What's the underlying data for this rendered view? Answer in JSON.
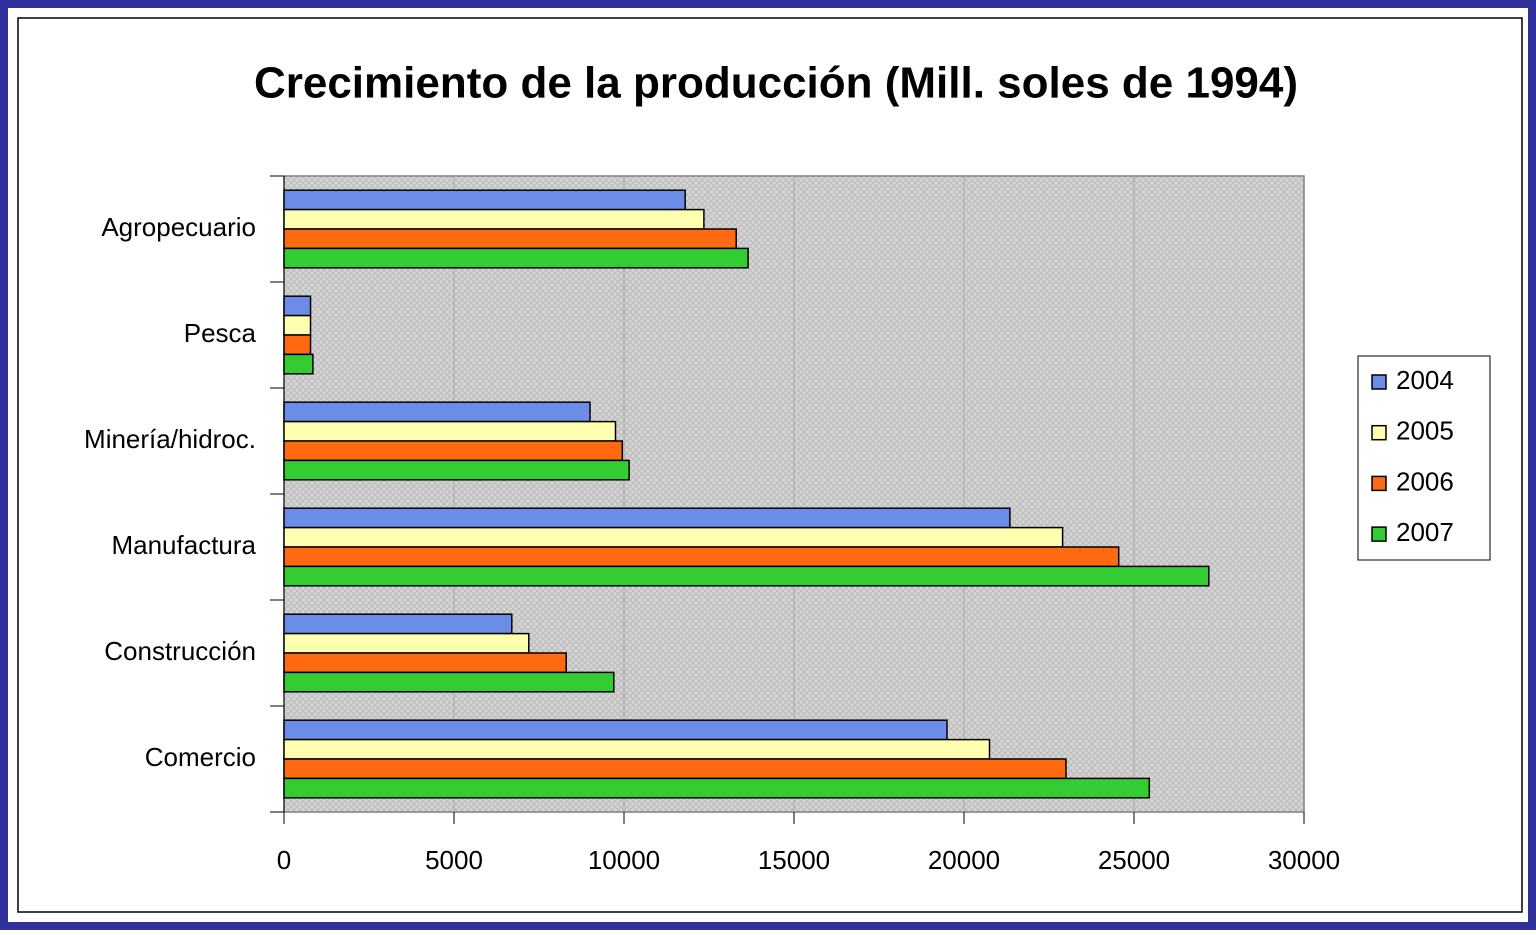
{
  "chart_data": {
    "type": "bar",
    "orientation": "horizontal",
    "title": "Crecimiento de la producción (Mill. soles de 1994)",
    "categories": [
      "Agropecuario",
      "Pesca",
      "Minería/hidroc.",
      "Manufactura",
      "Construcción",
      "Comercio"
    ],
    "series": [
      {
        "name": "2004",
        "color": "#6b8de8",
        "values": [
          11800,
          780,
          9000,
          21350,
          6700,
          19500
        ]
      },
      {
        "name": "2005",
        "color": "#ffffb0",
        "values": [
          12350,
          780,
          9750,
          22900,
          7200,
          20750
        ]
      },
      {
        "name": "2006",
        "color": "#ff6a10",
        "values": [
          13300,
          780,
          9950,
          24550,
          8300,
          23000
        ]
      },
      {
        "name": "2007",
        "color": "#33cc33",
        "values": [
          13650,
          850,
          10150,
          27200,
          9700,
          25450
        ]
      }
    ],
    "xlim": [
      0,
      30000
    ],
    "xticks": [
      0,
      5000,
      10000,
      15000,
      20000,
      25000,
      30000
    ],
    "grid": true,
    "legend": "right"
  }
}
